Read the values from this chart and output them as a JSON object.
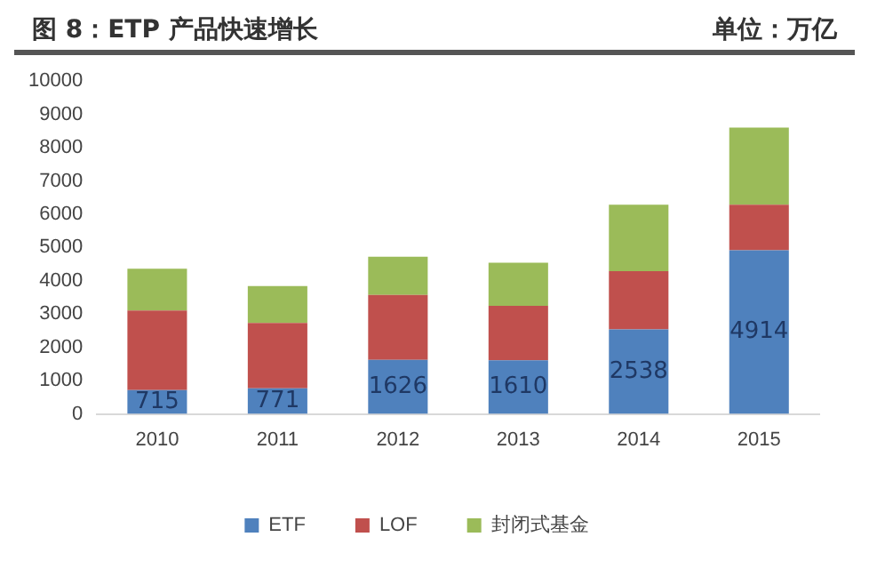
{
  "chart_data": {
    "type": "bar",
    "title": "图 8：ETP 产品快速增长",
    "subtitle": "单位：万亿",
    "categories": [
      "2010",
      "2011",
      "2012",
      "2013",
      "2014",
      "2015"
    ],
    "stacked": true,
    "series": [
      {
        "name": "ETF",
        "color": "#4f81bd",
        "values": [
          715,
          771,
          1626,
          1610,
          2538,
          4914
        ],
        "value_labels": [
          "715",
          "771",
          "1626",
          "1610",
          "2538",
          "4914"
        ]
      },
      {
        "name": "LOF",
        "color": "#c0504d",
        "values": [
          2390,
          1960,
          1950,
          1640,
          1750,
          1370
        ]
      },
      {
        "name": "封闭式基金",
        "color": "#9bbb59",
        "values": [
          1260,
          1110,
          1150,
          1290,
          2000,
          2320
        ]
      }
    ],
    "ylim": [
      0,
      10000
    ],
    "yticks": [
      0,
      1000,
      2000,
      3000,
      4000,
      5000,
      6000,
      7000,
      8000,
      9000,
      10000
    ],
    "grid": false,
    "legend": "bottom"
  }
}
